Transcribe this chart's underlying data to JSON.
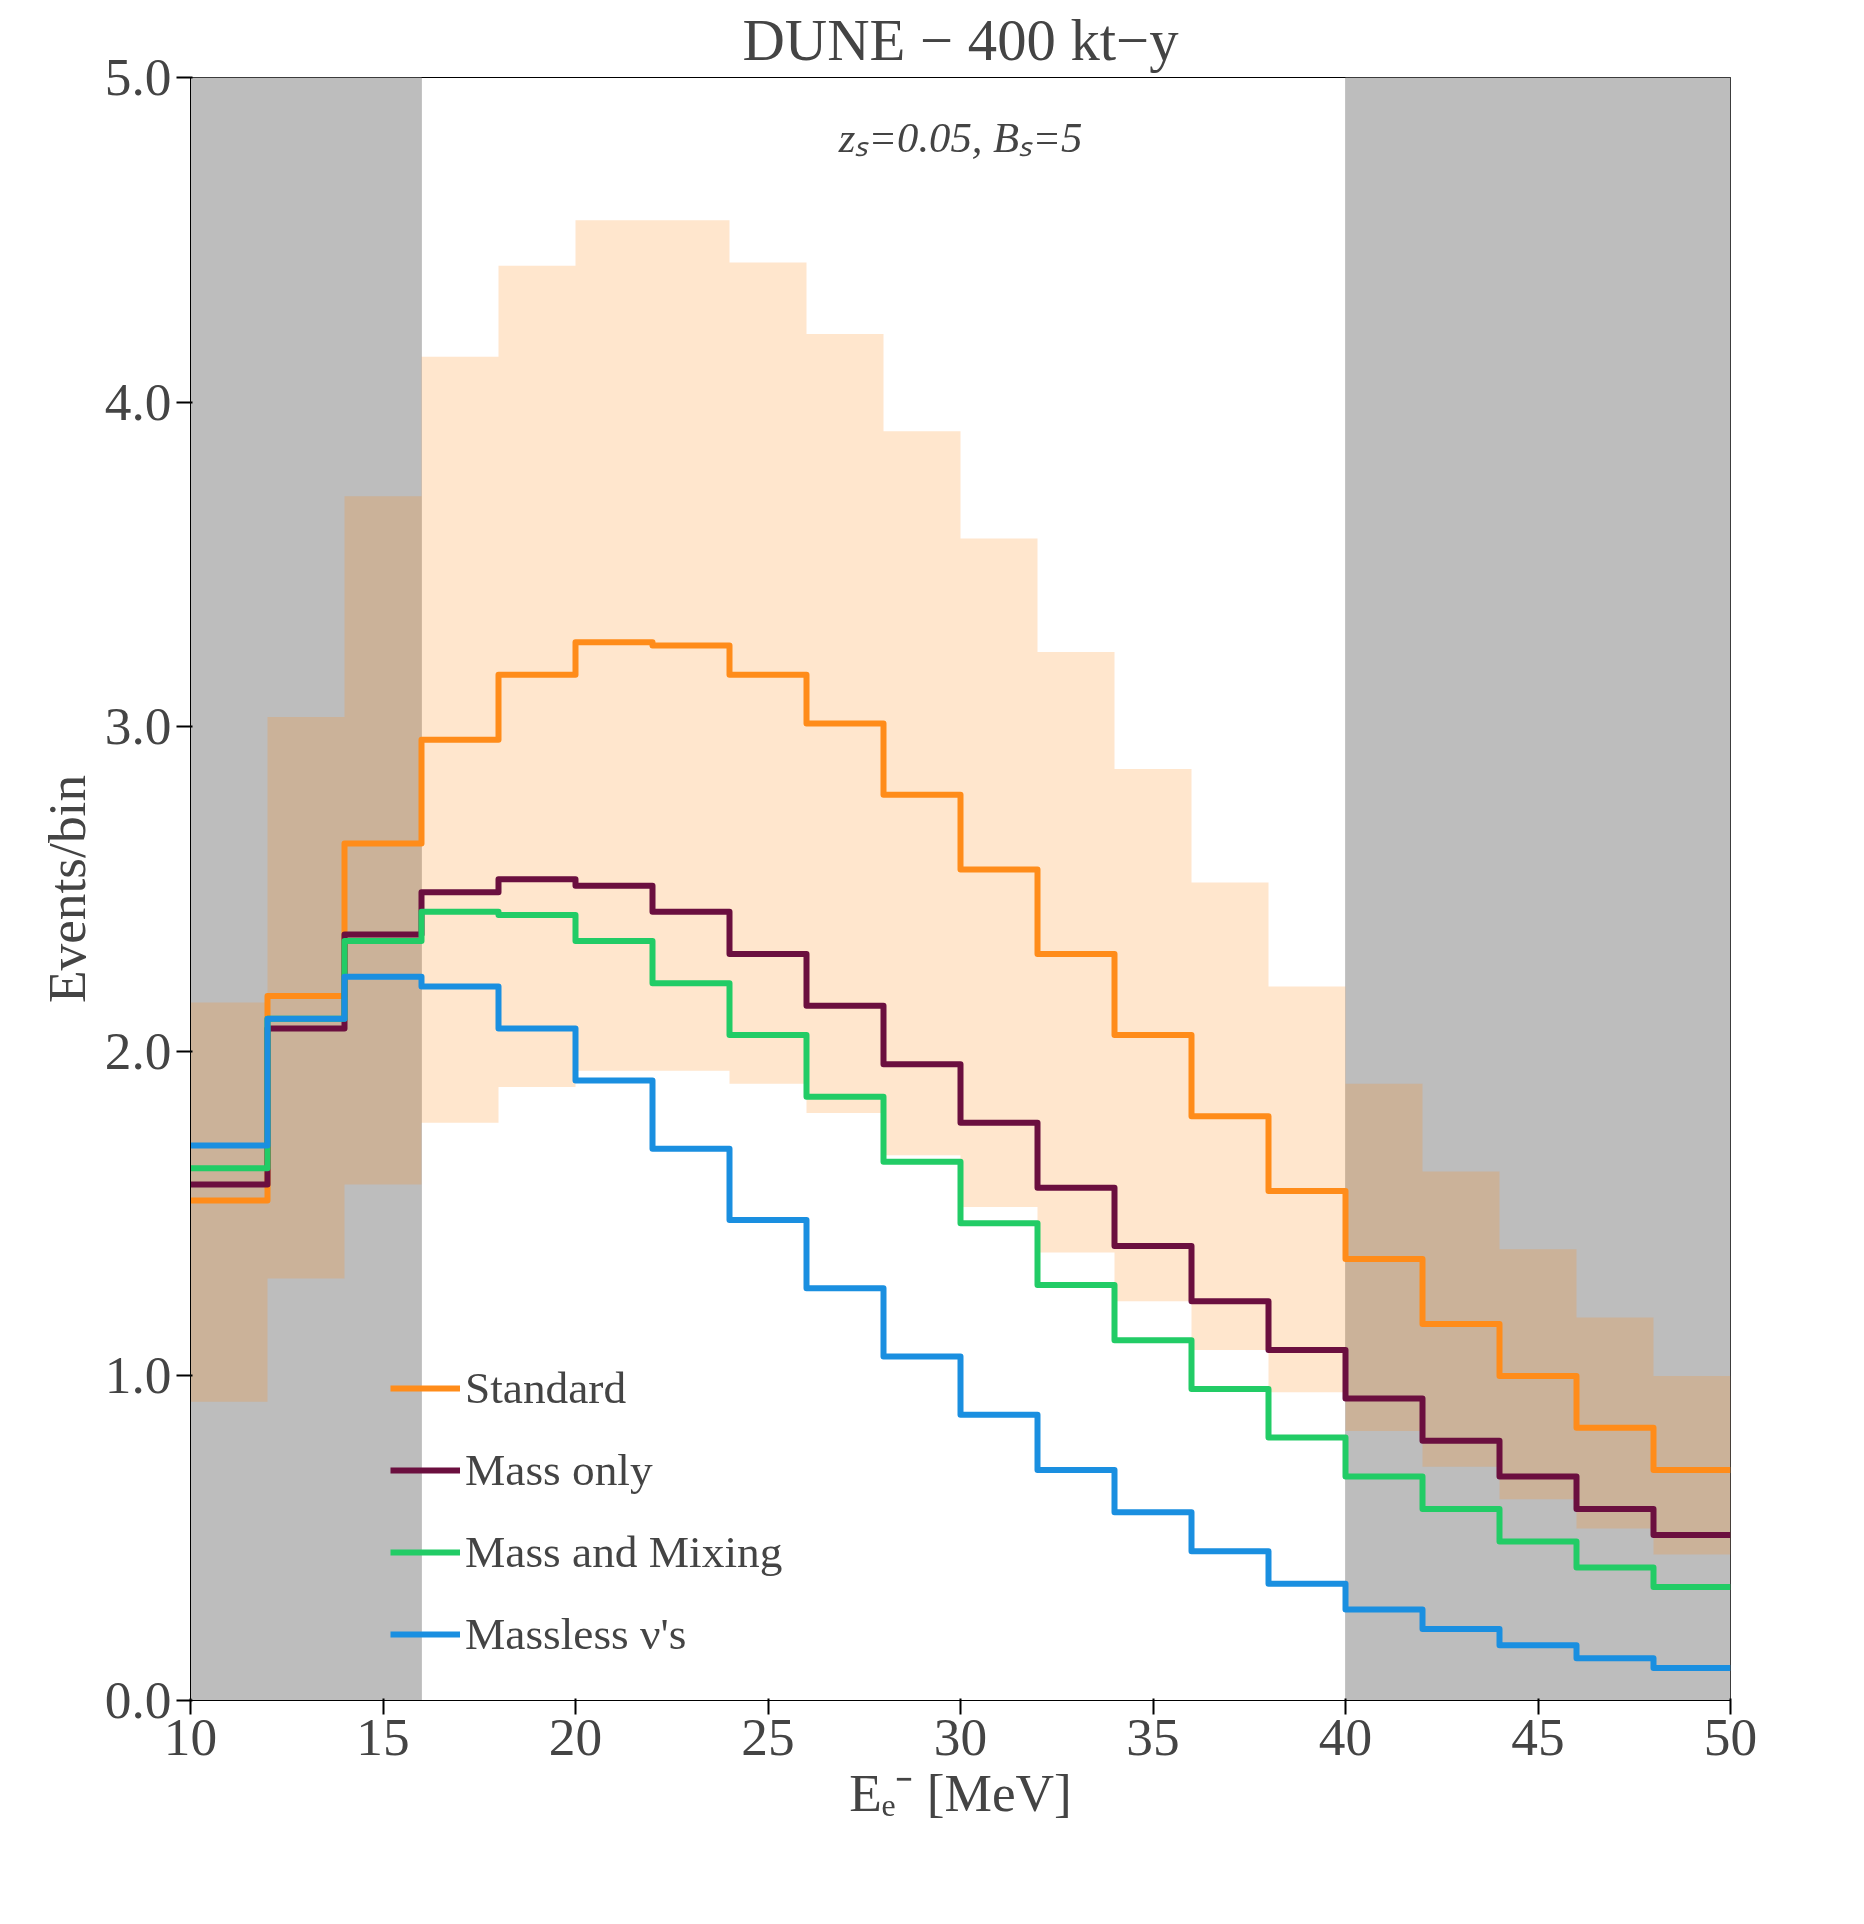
{
  "chart_data": {
    "type": "step",
    "title": "DUNE − 400 kt−y",
    "xlabel": "Eₑ⁻ [MeV]",
    "ylabel": "Events/bin",
    "annotations": [
      "zₛ=0.05, Bₛ=5"
    ],
    "x": [
      10,
      12,
      14,
      16,
      18,
      20,
      22,
      24,
      26,
      28,
      30,
      32,
      34,
      36,
      38,
      40,
      42,
      44,
      46,
      48,
      50
    ],
    "series": [
      {
        "name": "Standard",
        "color": "#ff8c1a",
        "values": [
          1.54,
          2.17,
          2.64,
          2.96,
          3.16,
          3.26,
          3.25,
          3.16,
          3.01,
          2.79,
          2.56,
          2.3,
          2.05,
          1.8,
          1.57,
          1.36,
          1.16,
          1.0,
          0.84,
          0.71,
          0.71
        ],
        "lower": [
          0.92,
          1.3,
          1.59,
          1.78,
          1.89,
          1.94,
          1.94,
          1.9,
          1.81,
          1.68,
          1.52,
          1.38,
          1.23,
          1.08,
          0.95,
          0.83,
          0.72,
          0.62,
          0.53,
          0.45,
          0.45
        ],
        "upper": [
          2.15,
          3.03,
          3.71,
          4.14,
          4.42,
          4.56,
          4.56,
          4.43,
          4.21,
          3.91,
          3.58,
          3.23,
          2.87,
          2.52,
          2.2,
          1.9,
          1.63,
          1.39,
          1.18,
          1.0,
          1.0
        ]
      },
      {
        "name": "Mass only",
        "color": "#6b0f3f",
        "values": [
          1.59,
          2.07,
          2.36,
          2.49,
          2.53,
          2.51,
          2.43,
          2.3,
          2.14,
          1.96,
          1.78,
          1.58,
          1.4,
          1.23,
          1.08,
          0.93,
          0.8,
          0.69,
          0.59,
          0.51,
          0.51
        ]
      },
      {
        "name": "Mass and Mixing",
        "color": "#22cc66",
        "values": [
          1.64,
          2.1,
          2.34,
          2.43,
          2.42,
          2.34,
          2.21,
          2.05,
          1.86,
          1.66,
          1.47,
          1.28,
          1.11,
          0.96,
          0.81,
          0.69,
          0.59,
          0.49,
          0.41,
          0.35,
          0.35
        ]
      },
      {
        "name": "Massless ν's",
        "color": "#1a8fe0",
        "values": [
          1.71,
          2.1,
          2.23,
          2.2,
          2.07,
          1.91,
          1.7,
          1.48,
          1.27,
          1.06,
          0.88,
          0.71,
          0.58,
          0.46,
          0.36,
          0.28,
          0.22,
          0.17,
          0.13,
          0.1,
          0.1
        ]
      }
    ],
    "bands": [
      {
        "axis": "x",
        "from": 10,
        "to": 16,
        "color": "#bdbdbd"
      },
      {
        "axis": "x",
        "from": 40,
        "to": 50,
        "color": "#bdbdbd"
      }
    ],
    "xlim": [
      10,
      50
    ],
    "ylim": [
      0,
      5
    ],
    "xticks": [
      10,
      15,
      20,
      25,
      30,
      35,
      40,
      45,
      50
    ],
    "yticks": [
      {
        "value": 0,
        "label": "0.0"
      },
      {
        "value": 1,
        "label": "1.0"
      },
      {
        "value": 2,
        "label": "2.0"
      },
      {
        "value": 3,
        "label": "3.0"
      },
      {
        "value": 4,
        "label": "4.0"
      },
      {
        "value": 5,
        "label": "5.0"
      }
    ],
    "grid": false,
    "legend": "bottom left",
    "line_style": "solid"
  }
}
